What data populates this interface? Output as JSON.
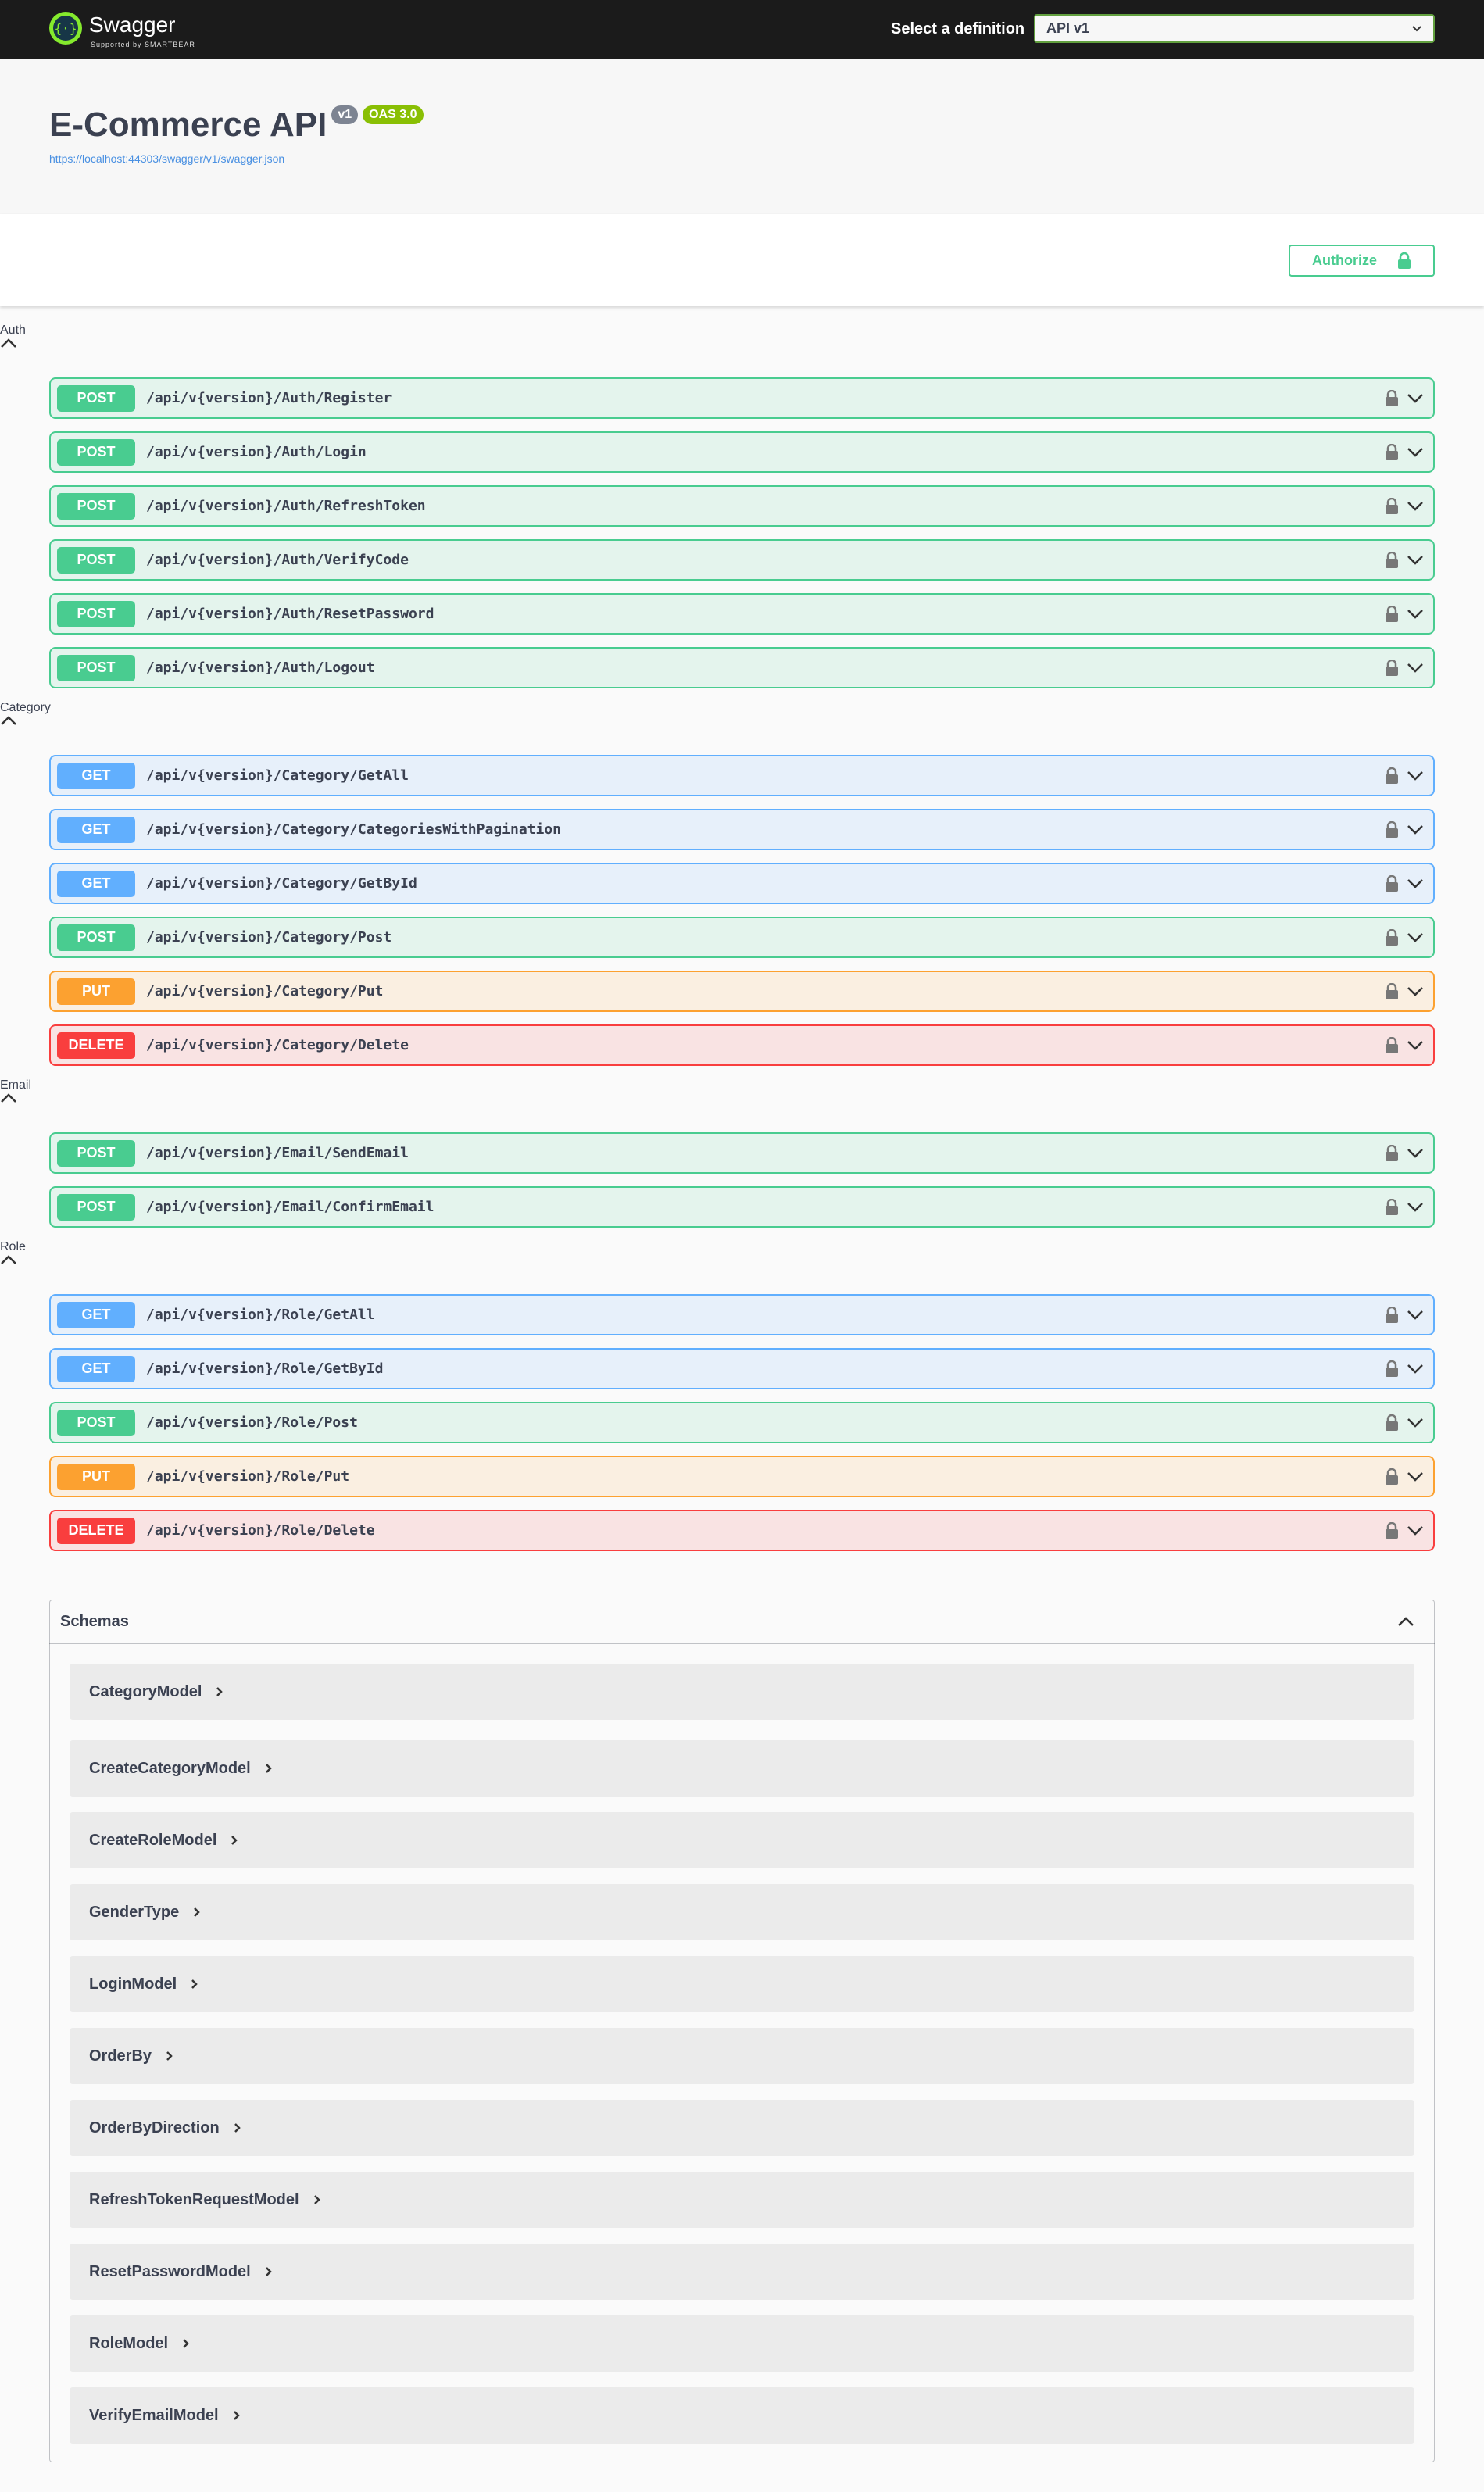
{
  "header": {
    "brand": "Swagger",
    "brand_sub": "Supported by SMARTBEAR",
    "select_label": "Select a definition",
    "select_value": "API v1"
  },
  "info": {
    "title": "E-Commerce API",
    "version": "v1",
    "oas": "OAS 3.0",
    "url": "https://localhost:44303/swagger/v1/swagger.json"
  },
  "authorize": "Authorize",
  "sections": [
    {
      "name": "Auth",
      "operations": [
        {
          "method": "POST",
          "path": "/api/v{version}/Auth/Register"
        },
        {
          "method": "POST",
          "path": "/api/v{version}/Auth/Login"
        },
        {
          "method": "POST",
          "path": "/api/v{version}/Auth/RefreshToken"
        },
        {
          "method": "POST",
          "path": "/api/v{version}/Auth/VerifyCode"
        },
        {
          "method": "POST",
          "path": "/api/v{version}/Auth/ResetPassword"
        },
        {
          "method": "POST",
          "path": "/api/v{version}/Auth/Logout"
        }
      ]
    },
    {
      "name": "Category",
      "operations": [
        {
          "method": "GET",
          "path": "/api/v{version}/Category/GetAll"
        },
        {
          "method": "GET",
          "path": "/api/v{version}/Category/CategoriesWithPagination"
        },
        {
          "method": "GET",
          "path": "/api/v{version}/Category/GetById"
        },
        {
          "method": "POST",
          "path": "/api/v{version}/Category/Post"
        },
        {
          "method": "PUT",
          "path": "/api/v{version}/Category/Put"
        },
        {
          "method": "DELETE",
          "path": "/api/v{version}/Category/Delete"
        }
      ]
    },
    {
      "name": "Email",
      "operations": [
        {
          "method": "POST",
          "path": "/api/v{version}/Email/SendEmail"
        },
        {
          "method": "POST",
          "path": "/api/v{version}/Email/ConfirmEmail"
        }
      ]
    },
    {
      "name": "Role",
      "operations": [
        {
          "method": "GET",
          "path": "/api/v{version}/Role/GetAll"
        },
        {
          "method": "GET",
          "path": "/api/v{version}/Role/GetById"
        },
        {
          "method": "POST",
          "path": "/api/v{version}/Role/Post"
        },
        {
          "method": "PUT",
          "path": "/api/v{version}/Role/Put"
        },
        {
          "method": "DELETE",
          "path": "/api/v{version}/Role/Delete"
        }
      ]
    }
  ],
  "schemas": {
    "title": "Schemas",
    "items": [
      "CategoryModel",
      "CreateCategoryModel",
      "CreateRoleModel",
      "GenderType",
      "LoginModel",
      "OrderBy",
      "OrderByDirection",
      "RefreshTokenRequestModel",
      "ResetPasswordModel",
      "RoleModel",
      "VerifyEmailModel"
    ]
  }
}
